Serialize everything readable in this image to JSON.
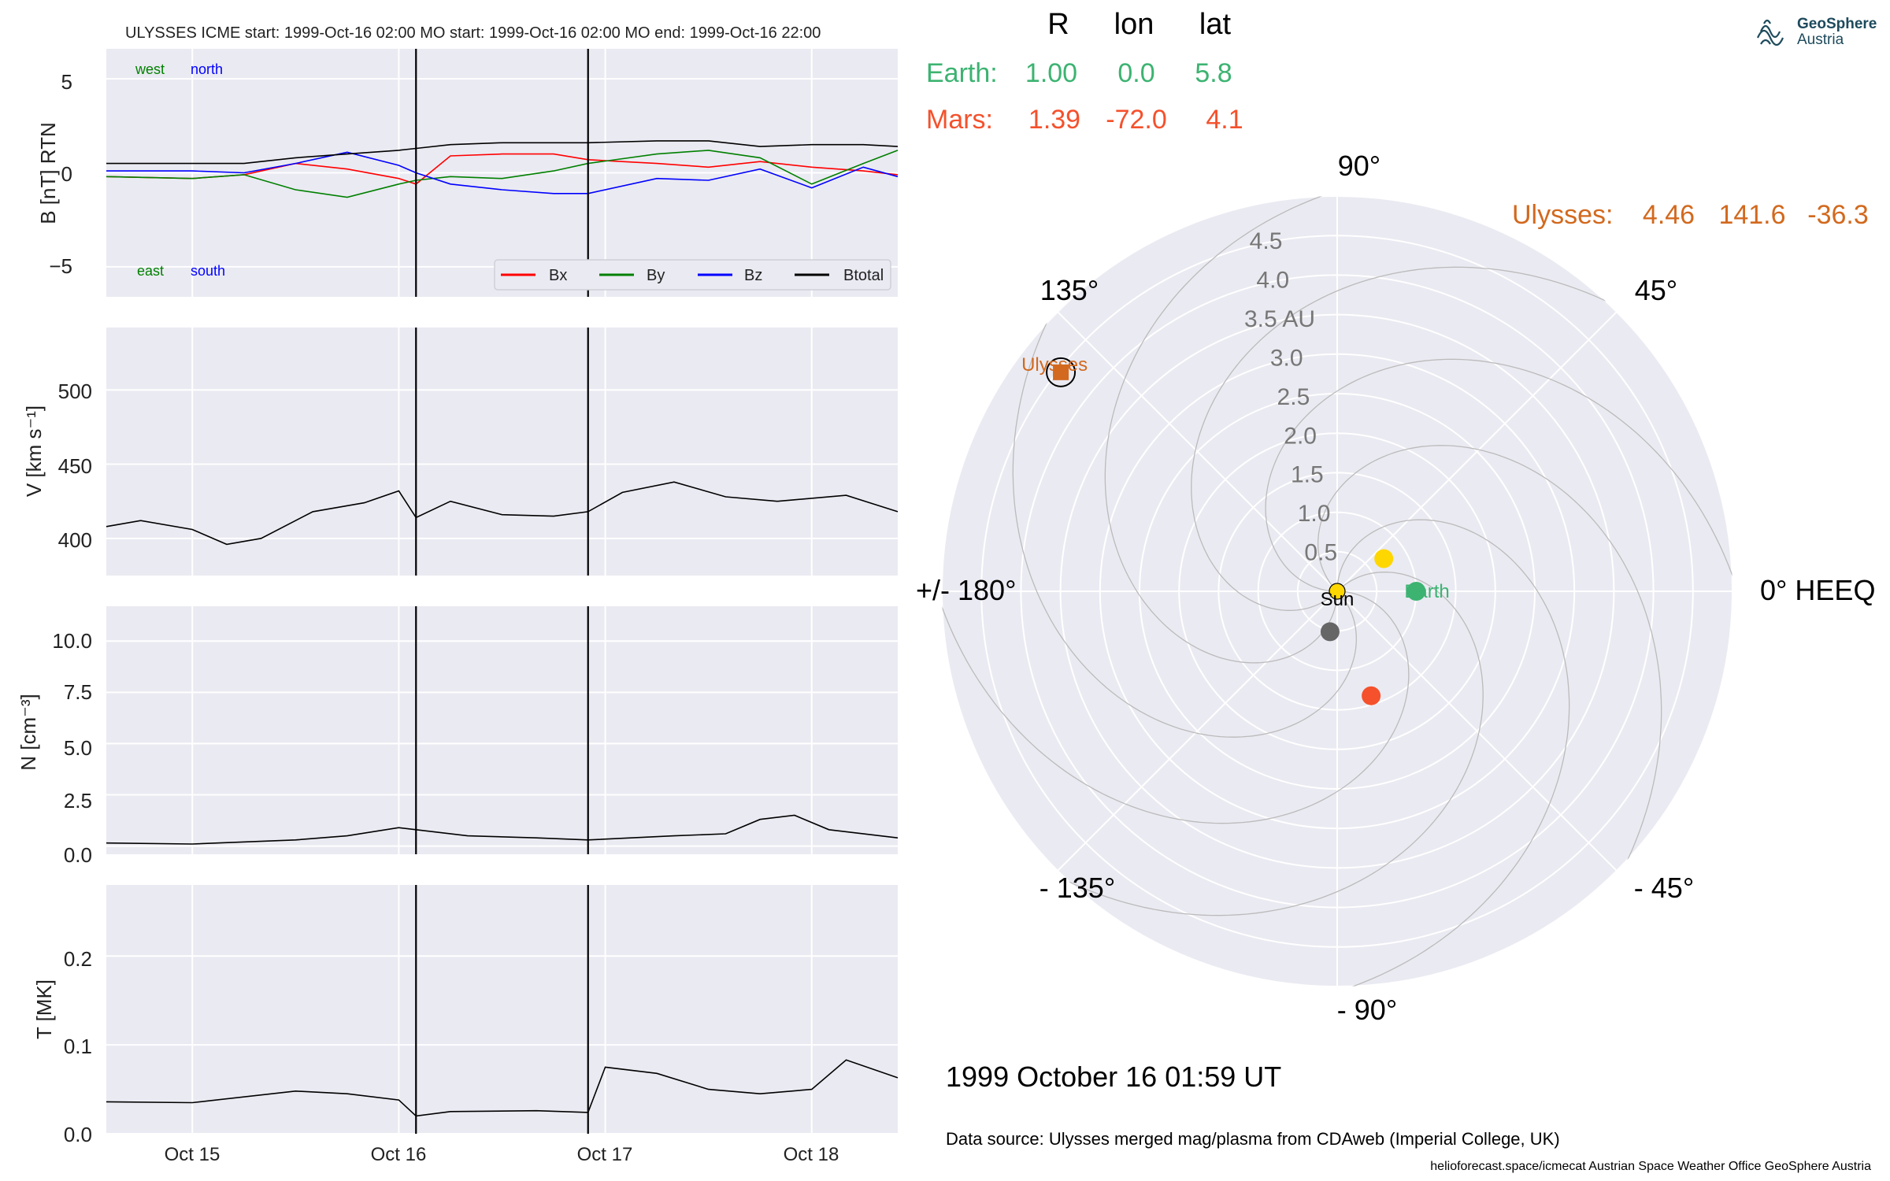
{
  "header": {
    "title": "ULYSSES    ICME start: 1999-Oct-16 02:00   MO start: 1999-Oct-16 02:00   MO end: 1999-Oct-16 22:00"
  },
  "colors": {
    "panel_bg": "#eaeaf2",
    "grid": "#ffffff",
    "bx": "#ff0000",
    "by": "#008000",
    "bz": "#0000ff",
    "btotal": "#000000",
    "earth": "#3cb371",
    "mars": "#f4512c",
    "ulysses": "#d2691e",
    "sun": "#ffd700",
    "grey": "#666666"
  },
  "timeseries": {
    "x_ticks": [
      "Oct 15",
      "Oct 16",
      "Oct 17",
      "Oct 18"
    ],
    "x_range": [
      "1999-10-14 14:00",
      "1999-10-18 10:00"
    ],
    "event_lines": [
      "1999-10-16 02:00",
      "1999-10-16 22:00"
    ],
    "b_panel": {
      "ylabel": "B [nT] RTN",
      "yticks": [
        "5",
        "0",
        "−5"
      ],
      "ylim": [
        -6.6,
        6.6
      ],
      "corner_labels": {
        "west": "west",
        "north": "north",
        "east": "east",
        "south": "south"
      },
      "legend": [
        "Bx",
        "By",
        "Bz",
        "Btotal"
      ]
    },
    "v_panel": {
      "ylabel": "V [km s⁻¹]",
      "yticks": [
        "500",
        "450",
        "400"
      ],
      "ylim": [
        375,
        542
      ]
    },
    "n_panel": {
      "ylabel": "N [cm⁻³]",
      "yticks": [
        "10.0",
        "7.5",
        "5.0",
        "2.5",
        "0.0"
      ],
      "ylim": [
        -0.4,
        11.7
      ]
    },
    "t_panel": {
      "ylabel": "T [MK]",
      "yticks": [
        "0.2",
        "0.1",
        "0.0"
      ],
      "ylim": [
        0,
        0.28
      ]
    }
  },
  "polar": {
    "top_headers": [
      "R",
      "lon",
      "lat"
    ],
    "earth_row": {
      "name": "Earth:",
      "r": "1.00",
      "lon": "0.0",
      "lat": "5.8"
    },
    "mars_row": {
      "name": "Mars:",
      "r": "1.39",
      "lon": "-72.0",
      "lat": "4.1"
    },
    "ulysses_row": {
      "name": "Ulysses:",
      "r": "4.46",
      "lon": "141.6",
      "lat": "-36.3"
    },
    "angle_labels": {
      "a90": "90°",
      "a45": "45°",
      "a0": "0° HEEQ",
      "am45": "- 45°",
      "am90": "- 90°",
      "am135": "- 135°",
      "a180": "+/- 180°",
      "a135": "135°"
    },
    "radial_labels": [
      "0.5",
      "1.0",
      "1.5",
      "2.0",
      "2.5",
      "3.0",
      "3.5 AU",
      "4.0",
      "4.5"
    ],
    "object_labels": {
      "sun": "Sun",
      "earth": "Earth",
      "ulysses": "Ulysses"
    },
    "date": "1999 October 16  01:59 UT",
    "data_source": "Data source: Ulysses merged mag/plasma from CDAweb (Imperial College, UK)",
    "footer": "helioforecast.space/icmecat   Austrian Space Weather Office   GeoSphere Austria"
  },
  "logo": {
    "line1": "GeoSphere",
    "line2": "Austria"
  },
  "chart_data": [
    {
      "type": "line",
      "title": "ULYSSES    ICME start: 1999-Oct-16 02:00   MO start: 1999-Oct-16 02:00   MO end: 1999-Oct-16 22:00",
      "ylabel": "B [nT] RTN",
      "ylim": [
        -6.6,
        6.6
      ],
      "x": [
        "Oct 14 14:00",
        "Oct 15 00:00",
        "Oct 15 06:00",
        "Oct 15 12:00",
        "Oct 15 18:00",
        "Oct 16 00:00",
        "Oct 16 02:00",
        "Oct 16 06:00",
        "Oct 16 12:00",
        "Oct 16 18:00",
        "Oct 16 22:00",
        "Oct 17 06:00",
        "Oct 17 12:00",
        "Oct 17 18:00",
        "Oct 18 00:00",
        "Oct 18 06:00",
        "Oct 18 10:00"
      ],
      "series": [
        {
          "name": "Bx",
          "values": [
            -0.2,
            -0.3,
            -0.1,
            0.5,
            0.2,
            -0.3,
            -0.6,
            0.9,
            1.0,
            1.0,
            0.7,
            0.5,
            0.3,
            0.6,
            0.3,
            0.1,
            -0.1
          ]
        },
        {
          "name": "By",
          "values": [
            -0.2,
            -0.3,
            -0.1,
            -0.9,
            -1.3,
            -0.6,
            -0.4,
            -0.2,
            -0.3,
            0.1,
            0.5,
            1.0,
            1.2,
            0.8,
            -0.6,
            0.5,
            1.2
          ]
        },
        {
          "name": "Bz",
          "values": [
            0.1,
            0.1,
            0.0,
            0.5,
            1.1,
            0.4,
            0.0,
            -0.6,
            -0.9,
            -1.1,
            -1.1,
            -0.3,
            -0.4,
            0.2,
            -0.8,
            0.3,
            -0.2
          ]
        },
        {
          "name": "Btotal",
          "values": [
            0.5,
            0.5,
            0.5,
            0.8,
            1.0,
            1.2,
            1.3,
            1.5,
            1.6,
            1.6,
            1.6,
            1.7,
            1.7,
            1.4,
            1.5,
            1.5,
            1.4
          ]
        }
      ]
    },
    {
      "type": "line",
      "ylabel": "V [km s⁻¹]",
      "ylim": [
        375,
        542
      ],
      "x": [
        "Oct 14 14:00",
        "Oct 14 18:00",
        "Oct 15 00:00",
        "Oct 15 04:00",
        "Oct 15 08:00",
        "Oct 15 14:00",
        "Oct 15 20:00",
        "Oct 16 00:00",
        "Oct 16 02:00",
        "Oct 16 06:00",
        "Oct 16 12:00",
        "Oct 16 18:00",
        "Oct 16 22:00",
        "Oct 17 02:00",
        "Oct 17 08:00",
        "Oct 17 14:00",
        "Oct 17 20:00",
        "Oct 18 04:00",
        "Oct 18 10:00"
      ],
      "series": [
        {
          "name": "",
          "values": [
            408,
            412,
            406,
            396,
            400,
            418,
            424,
            432,
            414,
            425,
            416,
            415,
            418,
            431,
            438,
            428,
            425,
            429,
            418
          ]
        }
      ]
    },
    {
      "type": "line",
      "ylabel": "N [cm⁻³]",
      "ylim": [
        -0.4,
        11.7
      ],
      "x": [
        "Oct 14 14:00",
        "Oct 15 00:00",
        "Oct 15 12:00",
        "Oct 15 18:00",
        "Oct 16 00:00",
        "Oct 16 02:00",
        "Oct 16 08:00",
        "Oct 16 16:00",
        "Oct 16 22:00",
        "Oct 17 08:00",
        "Oct 17 14:00",
        "Oct 17 18:00",
        "Oct 17 22:00",
        "Oct 18 02:00",
        "Oct 18 10:00"
      ],
      "series": [
        {
          "name": "",
          "values": [
            0.15,
            0.1,
            0.3,
            0.5,
            0.9,
            0.8,
            0.5,
            0.4,
            0.3,
            0.5,
            0.6,
            1.3,
            1.5,
            0.8,
            0.4
          ]
        }
      ]
    },
    {
      "type": "line",
      "ylabel": "T [MK]",
      "ylim": [
        0,
        0.28
      ],
      "x": [
        "Oct 14 14:00",
        "Oct 15 00:00",
        "Oct 15 12:00",
        "Oct 15 18:00",
        "Oct 16 00:00",
        "Oct 16 02:00",
        "Oct 16 06:00",
        "Oct 16 16:00",
        "Oct 16 22:00",
        "Oct 17 00:00",
        "Oct 17 06:00",
        "Oct 17 12:00",
        "Oct 17 18:00",
        "Oct 18 00:00",
        "Oct 18 04:00",
        "Oct 18 10:00"
      ],
      "series": [
        {
          "name": "",
          "values": [
            0.036,
            0.035,
            0.048,
            0.045,
            0.038,
            0.02,
            0.025,
            0.026,
            0.024,
            0.075,
            0.068,
            0.05,
            0.045,
            0.05,
            0.083,
            0.063
          ]
        }
      ]
    },
    {
      "type": "scatter",
      "subtype": "polar",
      "rlim": [
        0,
        5
      ],
      "points": [
        {
          "name": "Sun",
          "r": 0.0,
          "lon": 0.0
        },
        {
          "name": "Earth",
          "r": 1.0,
          "lon": 0.0
        },
        {
          "name": "Mars",
          "r": 1.39,
          "lon": -72.0
        },
        {
          "name": "Ulysses",
          "r": 4.46,
          "lon": 141.6
        },
        {
          "name": "",
          "r": 0.72,
          "lon": 35.0
        },
        {
          "name": "",
          "r": 0.52,
          "lon": -100.0
        }
      ]
    }
  ]
}
